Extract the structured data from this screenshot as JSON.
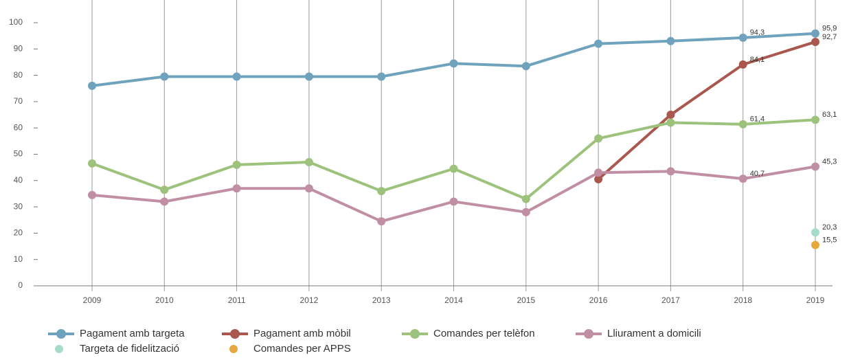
{
  "chart_data": {
    "type": "line",
    "categories": [
      "2009",
      "2010",
      "2011",
      "2012",
      "2013",
      "2014",
      "2015",
      "2016",
      "2017",
      "2018",
      "2019"
    ],
    "ylim": [
      0,
      100
    ],
    "yticks": [
      0,
      10,
      20,
      30,
      40,
      50,
      60,
      70,
      80,
      90,
      100
    ],
    "grid": false,
    "series": [
      {
        "name": "Pagament amb targeta",
        "color": "#6fa3bd",
        "values": [
          76,
          79.5,
          79.5,
          79.5,
          79.5,
          84.5,
          83.5,
          92,
          93,
          94.3,
          95.9
        ],
        "value_labels": [
          null,
          null,
          null,
          null,
          null,
          null,
          null,
          null,
          null,
          "94,3",
          "95,9"
        ]
      },
      {
        "name": "Pagament amb mòbil",
        "color": "#a9574f",
        "values": [
          null,
          null,
          null,
          null,
          null,
          null,
          null,
          40.5,
          65,
          84.1,
          92.7
        ],
        "value_labels": [
          null,
          null,
          null,
          null,
          null,
          null,
          null,
          null,
          null,
          "84,1",
          "92,7"
        ]
      },
      {
        "name": "Comandes per telèfon",
        "color": "#9dc27b",
        "values": [
          46.5,
          36.5,
          46,
          47,
          36,
          44.5,
          33,
          56,
          62,
          61.4,
          63.1
        ],
        "value_labels": [
          null,
          null,
          null,
          null,
          null,
          null,
          null,
          null,
          null,
          "61,4",
          "63,1"
        ]
      },
      {
        "name": "Lliurament a domicili",
        "color": "#c08fa4",
        "values": [
          34.5,
          32,
          37,
          37,
          24.5,
          32,
          28,
          43,
          43.5,
          40.7,
          45.3
        ],
        "value_labels": [
          null,
          null,
          null,
          null,
          null,
          null,
          null,
          null,
          null,
          "40,7",
          "45,3"
        ]
      },
      {
        "name": "Targeta de fidelització",
        "color": "#a6dccb",
        "values": [
          null,
          null,
          null,
          null,
          null,
          null,
          null,
          null,
          null,
          null,
          20.3
        ],
        "value_labels": [
          null,
          null,
          null,
          null,
          null,
          null,
          null,
          null,
          null,
          null,
          "20,3"
        ]
      },
      {
        "name": "Comandes per APPS",
        "color": "#e8a840",
        "values": [
          null,
          null,
          null,
          null,
          null,
          null,
          null,
          null,
          null,
          null,
          15.5
        ],
        "value_labels": [
          null,
          null,
          null,
          null,
          null,
          null,
          null,
          null,
          null,
          null,
          "15,5"
        ]
      }
    ]
  }
}
